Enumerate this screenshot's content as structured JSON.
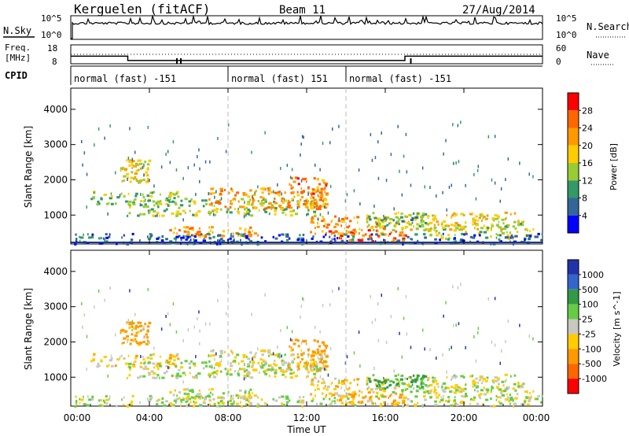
{
  "header": {
    "title": "Kerguelen (fitACF)",
    "beam": "Beam 11",
    "date": "27/Aug/2014"
  },
  "nsky_panel": {
    "label": "N.Sky",
    "tick_top": "10^5",
    "tick_bottom": "10^0",
    "right_label": "N.Search",
    "right_tick_top": "10^5",
    "right_tick_bottom": "10^0"
  },
  "freq_panel": {
    "label_line1": "Freq.",
    "label_line2": "[MHz]",
    "tick_top": "18",
    "tick_bottom": "8",
    "right_label": "Nave",
    "right_tick_top": "60",
    "right_tick_bottom": "0"
  },
  "cpid_panel": {
    "label": "CPID",
    "segments": [
      {
        "text": "normal (fast) -151",
        "start_hour": 0
      },
      {
        "text": "normal (fast) 151",
        "start_hour": 8
      },
      {
        "text": "normal (fast) -151",
        "start_hour": 14
      }
    ]
  },
  "power_panel": {
    "ylabel": "Slant Range [km]",
    "cbar_label": "Power [dB]",
    "cbar_ticks": [
      "28",
      "24",
      "20",
      "16",
      "12",
      "8",
      "4"
    ],
    "cbar_colors": [
      "#ff0000",
      "#ff6600",
      "#ff9900",
      "#ffcc00",
      "#99cc33",
      "#339966",
      "#336699",
      "#0000ff"
    ]
  },
  "velocity_panel": {
    "ylabel": "Slant Range [km]",
    "cbar_label": "Velocity [m s^-1]",
    "cbar_ticks": [
      "1000",
      "500",
      "100",
      "25",
      "-25",
      "-100",
      "-500",
      "-1000"
    ],
    "cbar_colors": [
      "#2233aa",
      "#3366cc",
      "#339944",
      "#66cc44",
      "#c8c8c0",
      "#ffcc00",
      "#ff9900",
      "#ff6600",
      "#ff0000"
    ]
  },
  "x_axis": {
    "label": "Time UT",
    "ticks": [
      "00:00",
      "04:00",
      "08:00",
      "12:00",
      "16:00",
      "20:00",
      "00:00"
    ]
  },
  "chart_data": {
    "type": "heatmap",
    "x_range_hours": [
      0,
      24
    ],
    "y_range_km": [
      180,
      4600
    ],
    "y_ticks": [
      1000,
      2000,
      3000,
      4000
    ],
    "freq_mhz_segments": [
      {
        "start": 0,
        "end": 2.9,
        "value": 12
      },
      {
        "start": 2.9,
        "end": 17.0,
        "value": 9.7
      },
      {
        "start": 17.0,
        "end": 24,
        "value": 12
      }
    ],
    "nave_segments": [
      {
        "start": 0,
        "end": 24,
        "value": 30
      }
    ],
    "echo_regions": [
      {
        "x0": 1.0,
        "x1": 5.5,
        "y0": 1300,
        "y1": 1700,
        "power": 14,
        "velocity": -50
      },
      {
        "x0": 2.5,
        "x1": 4.0,
        "y0": 1950,
        "y1": 2600,
        "power": 18,
        "velocity": -150
      },
      {
        "x0": 2.8,
        "x1": 12.5,
        "y0": 1000,
        "y1": 1500,
        "power": 14,
        "velocity": 0
      },
      {
        "x0": 7.0,
        "x1": 13.0,
        "y0": 1200,
        "y1": 1800,
        "power": 22,
        "velocity": -20
      },
      {
        "x0": 11.0,
        "x1": 13.0,
        "y0": 1200,
        "y1": 2100,
        "power": 24,
        "velocity": -200
      },
      {
        "x0": 5.0,
        "x1": 9.5,
        "y0": 400,
        "y1": 700,
        "power": 22,
        "velocity": 0
      },
      {
        "x0": 13.0,
        "x1": 17.0,
        "y0": 250,
        "y1": 600,
        "power": 26,
        "velocity": -120
      },
      {
        "x0": 12.0,
        "x1": 16.0,
        "y0": 500,
        "y1": 1000,
        "power": 22,
        "velocity": -60
      },
      {
        "x0": 15.0,
        "x1": 23.0,
        "y0": 600,
        "y1": 1100,
        "power": 18,
        "velocity": 0
      },
      {
        "x0": 15.0,
        "x1": 18.0,
        "y0": 700,
        "y1": 1100,
        "power": 12,
        "velocity": 150
      },
      {
        "x0": 18.0,
        "x1": 23.5,
        "y0": 350,
        "y1": 800,
        "power": 16,
        "velocity": 0
      },
      {
        "x0": 0.0,
        "x1": 24.0,
        "y0": 200,
        "y1": 500,
        "power": 6,
        "velocity": 0
      }
    ]
  }
}
